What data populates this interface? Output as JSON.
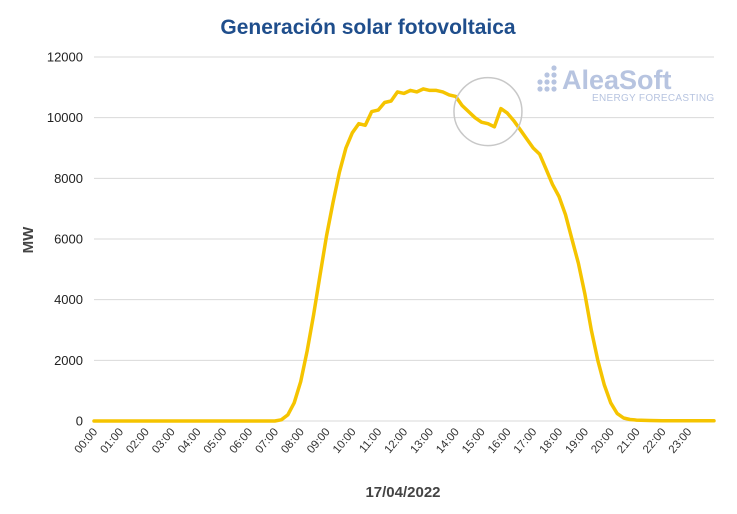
{
  "chart_data": {
    "type": "line",
    "title": "Generación solar fotovoltaica",
    "xlabel": "17/04/2022",
    "ylabel": "MW",
    "ylim": [
      0,
      12000
    ],
    "yticks": [
      "0",
      "2000",
      "4000",
      "6000",
      "8000",
      "10000",
      "12000"
    ],
    "xticks": [
      "00:00",
      "01:00",
      "02:00",
      "03:00",
      "04:00",
      "05:00",
      "06:00",
      "07:00",
      "08:00",
      "09:00",
      "10:00",
      "11:00",
      "12:00",
      "13:00",
      "14:00",
      "15:00",
      "16:00",
      "17:00",
      "18:00",
      "19:00",
      "20:00",
      "21:00",
      "22:00",
      "23:00"
    ],
    "grid": true,
    "series": [
      {
        "name": "Generación solar fotovoltaica",
        "color": "#f5c400",
        "x": [
          0,
          7.0,
          7.25,
          7.5,
          7.75,
          8.0,
          8.25,
          8.5,
          8.75,
          9.0,
          9.25,
          9.5,
          9.75,
          10.0,
          10.25,
          10.5,
          10.75,
          11.0,
          11.25,
          11.5,
          11.75,
          12.0,
          12.25,
          12.5,
          12.75,
          13.0,
          13.25,
          13.5,
          13.75,
          14.0,
          14.25,
          14.5,
          14.75,
          15.0,
          15.25,
          15.5,
          15.75,
          16.0,
          16.25,
          16.5,
          16.75,
          17.0,
          17.25,
          17.5,
          17.75,
          18.0,
          18.25,
          18.5,
          18.75,
          19.0,
          19.25,
          19.5,
          19.75,
          20.0,
          20.25,
          20.5,
          20.75,
          21.0,
          21.5,
          22.0,
          23.0,
          24.0
        ],
        "values": [
          0,
          0,
          40,
          200,
          600,
          1300,
          2300,
          3500,
          4800,
          6100,
          7200,
          8200,
          9000,
          9500,
          9800,
          9750,
          10200,
          10250,
          10500,
          10550,
          10850,
          10800,
          10900,
          10850,
          10950,
          10900,
          10900,
          10850,
          10750,
          10700,
          10400,
          10200,
          10000,
          9850,
          9800,
          9700,
          10300,
          10150,
          9900,
          9600,
          9300,
          9000,
          8800,
          8300,
          7800,
          7400,
          6800,
          6000,
          5200,
          4200,
          3000,
          2000,
          1200,
          600,
          250,
          100,
          50,
          30,
          15,
          8,
          5,
          5
        ]
      }
    ],
    "annotations": [
      {
        "type": "circle",
        "x": 15.25,
        "y": 10200,
        "note": "highlighted dip"
      }
    ]
  },
  "brand": {
    "name": "AleaSoft",
    "tagline": "ENERGY FORECASTING",
    "color": "#b7c4e0"
  },
  "colors": {
    "title": "#1f4e8c",
    "grid": "#d9d9d9",
    "line": "#f5c400"
  }
}
